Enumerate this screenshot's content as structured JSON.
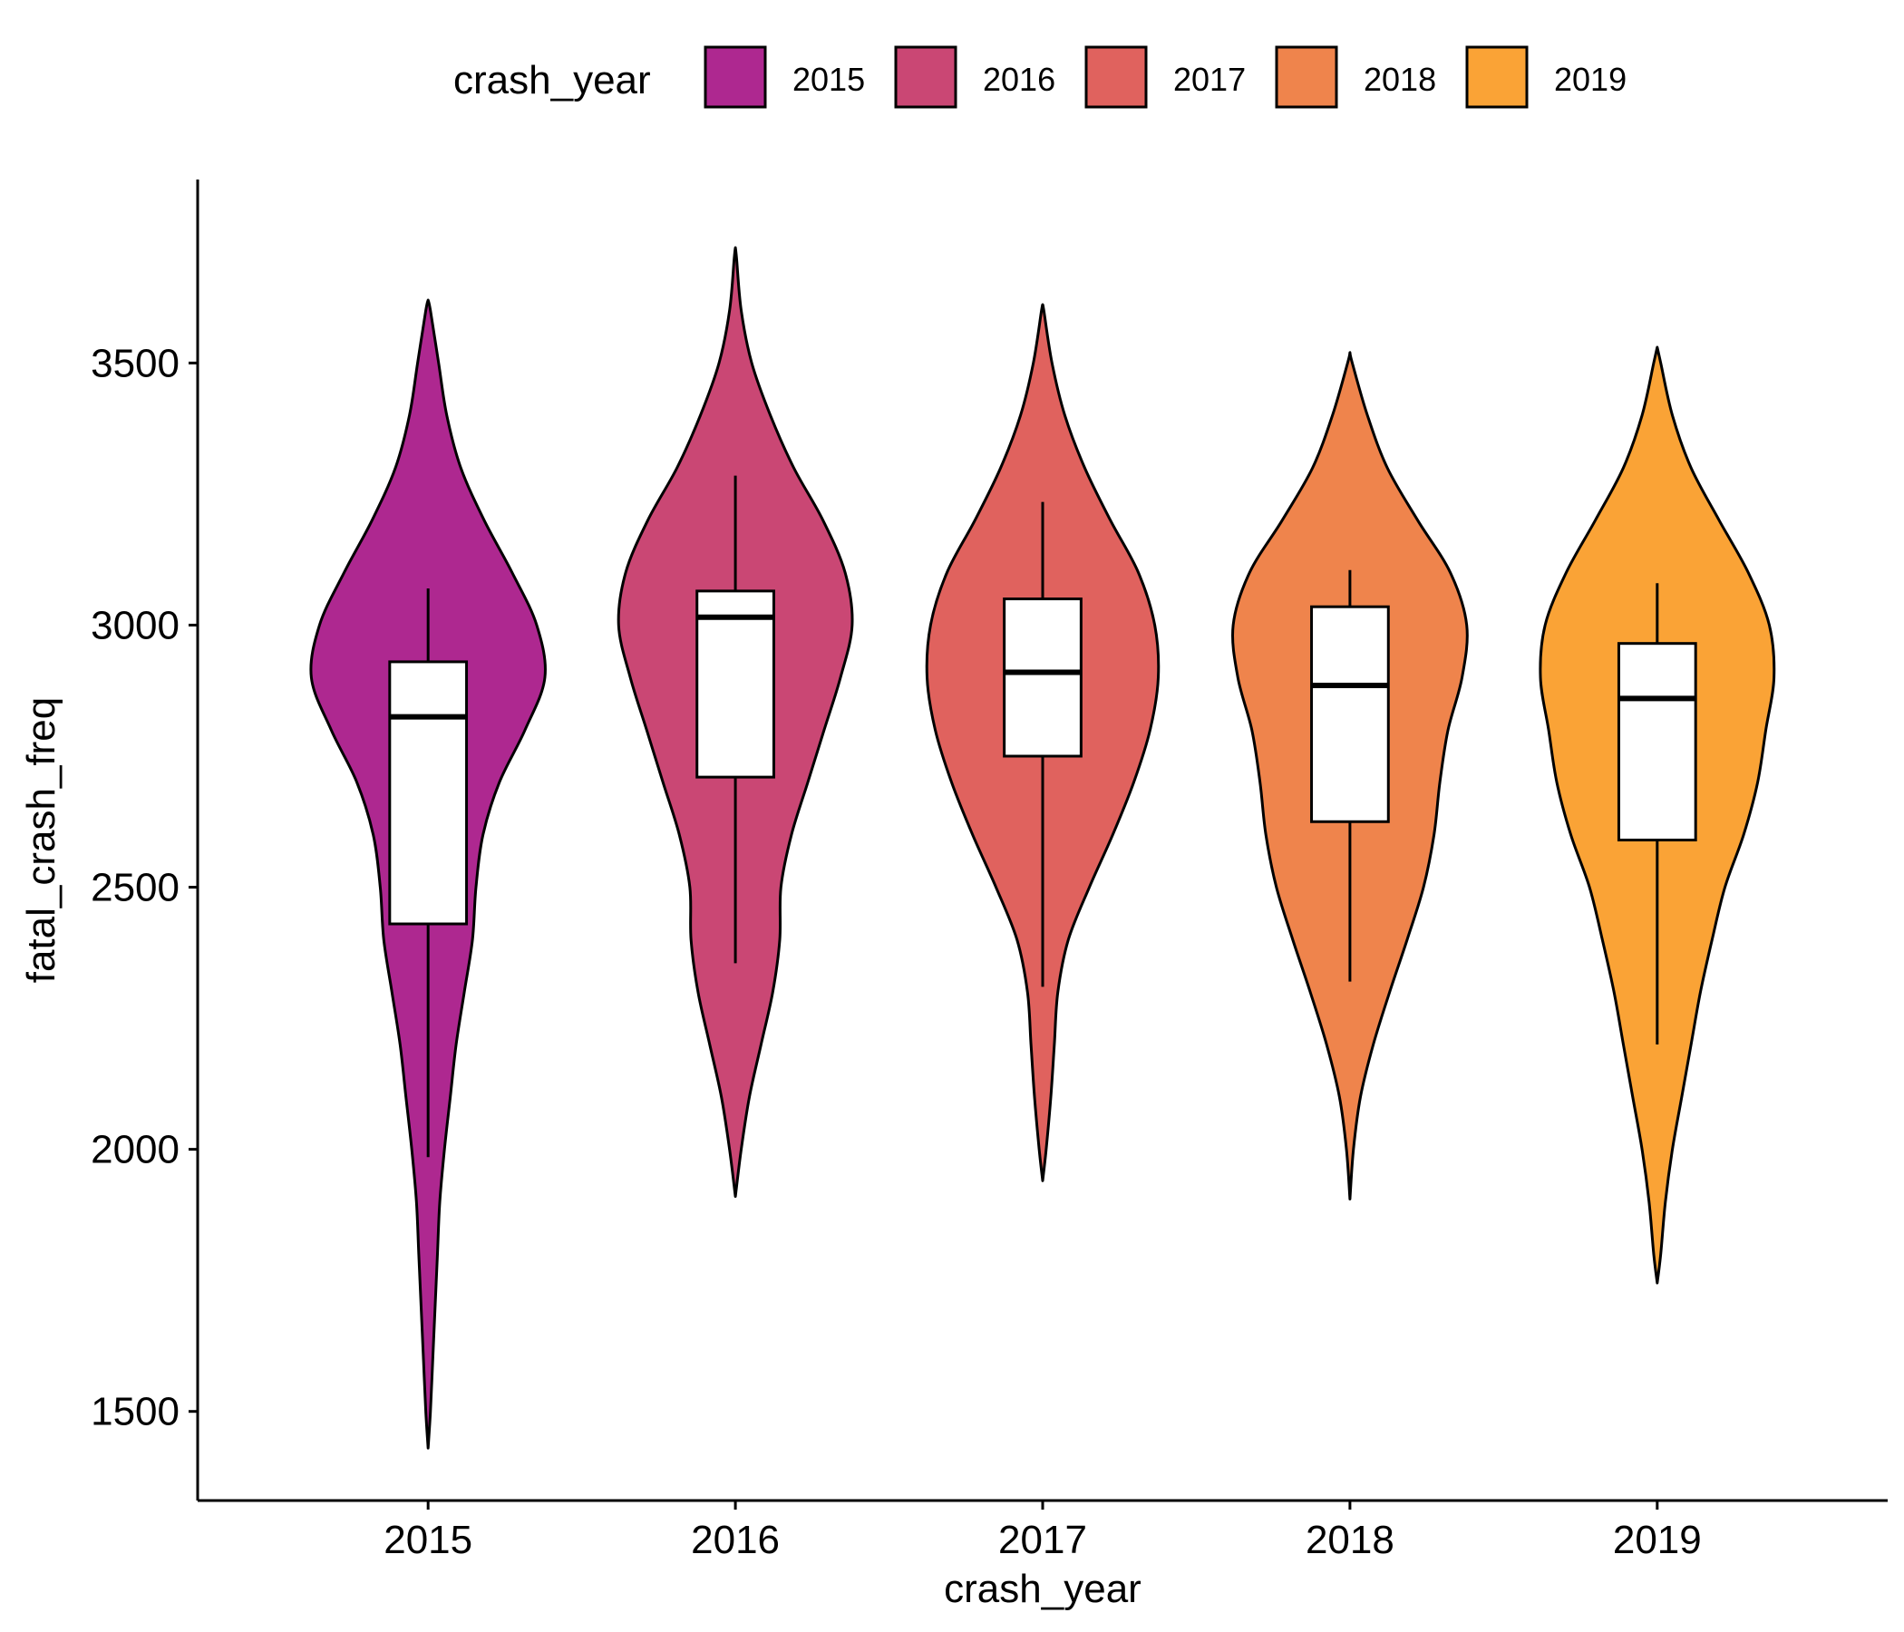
{
  "chart_data": {
    "type": "violin",
    "xlabel": "crash_year",
    "ylabel": "fatal_crash_freq",
    "legend": {
      "title": "crash_year",
      "position": "top"
    },
    "categories": [
      "2015",
      "2016",
      "2017",
      "2018",
      "2019"
    ],
    "ylim": [
      1330,
      3850
    ],
    "yticks": [
      1500,
      2000,
      2500,
      3000,
      3500
    ],
    "grid": false,
    "series": [
      {
        "name": "2015",
        "color": "#AE2890",
        "violin_min": 1430,
        "violin_max": 3620,
        "box": {
          "lower_whisker": 1985,
          "q1": 2430,
          "median": 2825,
          "q3": 2930,
          "upper_whisker": 3070
        },
        "density": [
          [
            1430,
            0.0
          ],
          [
            1500,
            0.02
          ],
          [
            1600,
            0.04
          ],
          [
            1700,
            0.06
          ],
          [
            1800,
            0.08
          ],
          [
            1900,
            0.1
          ],
          [
            2000,
            0.14
          ],
          [
            2100,
            0.19
          ],
          [
            2200,
            0.24
          ],
          [
            2300,
            0.31
          ],
          [
            2400,
            0.38
          ],
          [
            2500,
            0.41
          ],
          [
            2600,
            0.47
          ],
          [
            2700,
            0.61
          ],
          [
            2800,
            0.83
          ],
          [
            2900,
            1.0
          ],
          [
            3000,
            0.93
          ],
          [
            3100,
            0.72
          ],
          [
            3200,
            0.48
          ],
          [
            3300,
            0.28
          ],
          [
            3400,
            0.16
          ],
          [
            3500,
            0.09
          ],
          [
            3600,
            0.02
          ],
          [
            3620,
            0.0
          ]
        ]
      },
      {
        "name": "2016",
        "color": "#CA4774",
        "violin_min": 1910,
        "violin_max": 3720,
        "box": {
          "lower_whisker": 2355,
          "q1": 2710,
          "median": 3015,
          "q3": 3065,
          "upper_whisker": 3285
        },
        "density": [
          [
            1910,
            0.0
          ],
          [
            2000,
            0.05
          ],
          [
            2100,
            0.12
          ],
          [
            2200,
            0.22
          ],
          [
            2300,
            0.32
          ],
          [
            2400,
            0.38
          ],
          [
            2500,
            0.39
          ],
          [
            2600,
            0.48
          ],
          [
            2700,
            0.62
          ],
          [
            2800,
            0.76
          ],
          [
            2900,
            0.9
          ],
          [
            3000,
            1.0
          ],
          [
            3100,
            0.94
          ],
          [
            3200,
            0.75
          ],
          [
            3300,
            0.5
          ],
          [
            3400,
            0.3
          ],
          [
            3500,
            0.14
          ],
          [
            3600,
            0.05
          ],
          [
            3700,
            0.01
          ],
          [
            3720,
            0.0
          ]
        ]
      },
      {
        "name": "2017",
        "color": "#E0625E",
        "violin_min": 1940,
        "violin_max": 3610,
        "box": {
          "lower_whisker": 2310,
          "q1": 2750,
          "median": 2910,
          "q3": 3050,
          "upper_whisker": 3235
        },
        "density": [
          [
            1940,
            0.0
          ],
          [
            2000,
            0.03
          ],
          [
            2100,
            0.07
          ],
          [
            2200,
            0.1
          ],
          [
            2300,
            0.13
          ],
          [
            2400,
            0.22
          ],
          [
            2500,
            0.4
          ],
          [
            2600,
            0.6
          ],
          [
            2700,
            0.78
          ],
          [
            2800,
            0.92
          ],
          [
            2900,
            0.99
          ],
          [
            3000,
            0.96
          ],
          [
            3100,
            0.82
          ],
          [
            3200,
            0.58
          ],
          [
            3300,
            0.36
          ],
          [
            3400,
            0.19
          ],
          [
            3500,
            0.08
          ],
          [
            3600,
            0.01
          ],
          [
            3610,
            0.0
          ]
        ]
      },
      {
        "name": "2018",
        "color": "#EF844C",
        "violin_min": 1905,
        "violin_max": 3520,
        "box": {
          "lower_whisker": 2320,
          "q1": 2625,
          "median": 2885,
          "q3": 3035,
          "upper_whisker": 3105
        },
        "density": [
          [
            1905,
            0.0
          ],
          [
            2000,
            0.03
          ],
          [
            2100,
            0.09
          ],
          [
            2200,
            0.2
          ],
          [
            2300,
            0.34
          ],
          [
            2400,
            0.49
          ],
          [
            2500,
            0.63
          ],
          [
            2600,
            0.72
          ],
          [
            2700,
            0.77
          ],
          [
            2800,
            0.84
          ],
          [
            2900,
            0.96
          ],
          [
            3000,
            1.0
          ],
          [
            3100,
            0.86
          ],
          [
            3200,
            0.58
          ],
          [
            3300,
            0.32
          ],
          [
            3400,
            0.15
          ],
          [
            3500,
            0.02
          ],
          [
            3520,
            0.0
          ]
        ]
      },
      {
        "name": "2019",
        "color": "#FAA336",
        "violin_min": 1745,
        "violin_max": 3530,
        "box": {
          "lower_whisker": 2200,
          "q1": 2590,
          "median": 2860,
          "q3": 2965,
          "upper_whisker": 3080
        },
        "density": [
          [
            1745,
            0.0
          ],
          [
            1800,
            0.03
          ],
          [
            1900,
            0.07
          ],
          [
            2000,
            0.13
          ],
          [
            2100,
            0.21
          ],
          [
            2200,
            0.29
          ],
          [
            2300,
            0.37
          ],
          [
            2400,
            0.47
          ],
          [
            2500,
            0.58
          ],
          [
            2600,
            0.74
          ],
          [
            2700,
            0.86
          ],
          [
            2800,
            0.93
          ],
          [
            2900,
            1.0
          ],
          [
            3000,
            0.96
          ],
          [
            3100,
            0.78
          ],
          [
            3200,
            0.53
          ],
          [
            3300,
            0.29
          ],
          [
            3400,
            0.13
          ],
          [
            3500,
            0.03
          ],
          [
            3530,
            0.0
          ]
        ]
      }
    ]
  }
}
